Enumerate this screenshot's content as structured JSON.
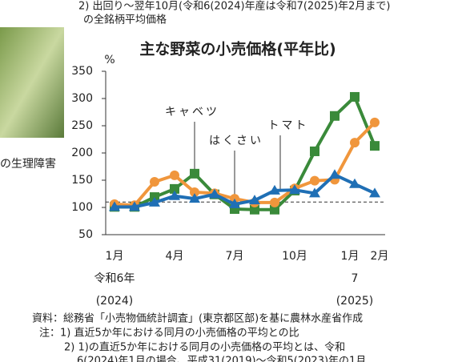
{
  "notes_top": [
    "2) 出回り～翌年10月(令和6(2024)年産は令和7(2025)年2月まで)",
    "の全銘柄平均価格"
  ],
  "side_text": "の生理障害",
  "chart_data": {
    "type": "line",
    "title": "主な野菜の小売価格(平年比)",
    "ylabel": "%",
    "categories": [
      "1月",
      null,
      null,
      "4月",
      null,
      null,
      "7月",
      null,
      null,
      "10月",
      null,
      null,
      "1月",
      "2月"
    ],
    "era_labels": [
      "令和6年",
      "7"
    ],
    "year_labels": [
      "(2024)",
      "(2025)"
    ],
    "ylim": [
      50,
      350
    ],
    "yticks": [
      50,
      100,
      150,
      200,
      250,
      300,
      350
    ],
    "hline": 110,
    "series": [
      {
        "name": "キャベツ",
        "color": "#3a8a3a",
        "marker": "square",
        "values": [
          101,
          101,
          119,
          134,
          162,
          124,
          97,
          96,
          96,
          131,
          203,
          268,
          303,
          213
        ]
      },
      {
        "name": "はくさい",
        "color": "#f0963c",
        "marker": "circle",
        "values": [
          106,
          104,
          147,
          159,
          128,
          126,
          116,
          109,
          109,
          135,
          149,
          151,
          219,
          256
        ]
      },
      {
        "name": "トマト",
        "color": "#1f6fb5",
        "marker": "triangle",
        "values": [
          101,
          101,
          109,
          121,
          116,
          124,
          106,
          113,
          131,
          132,
          126,
          160,
          143,
          126
        ]
      }
    ]
  },
  "notes_bottom": [
    "資料：総務省「小売物価統計調査」(東京都区部)を基に農林水産省作成",
    "注：1) 直近5か年における同月の小売価格の平均との比",
    "2) 1)の直近5か年における同月の小売価格の平均とは、令和",
    "6(2024)年1月の場合、平成31(2019)～令和5(2023)年の1月"
  ]
}
